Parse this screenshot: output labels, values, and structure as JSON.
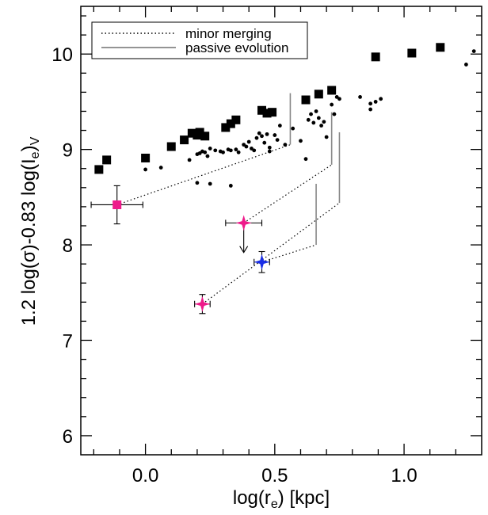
{
  "chart_data": {
    "type": "scatter",
    "xlabel": "log(r_e) [kpc]",
    "ylabel": "1.2 log(σ)-0.83 log(I_e)_V",
    "xlim": [
      -0.25,
      1.3
    ],
    "ylim": [
      5.8,
      10.5
    ],
    "x_ticks": [
      "0.0",
      "0.5",
      "1.0"
    ],
    "x_tick_values": [
      0.0,
      0.5,
      1.0
    ],
    "y_ticks": [
      "6",
      "7",
      "8",
      "9",
      "10"
    ],
    "y_tick_values": [
      6,
      7,
      8,
      9,
      10
    ],
    "legend": {
      "placement": "top-left",
      "items": [
        {
          "label": "minor merging",
          "style": "dotted"
        },
        {
          "label": "passive evolution",
          "style": "solid"
        }
      ]
    },
    "series": [
      {
        "marker": "square",
        "color": "#000000",
        "points": [
          [
            -0.18,
            8.79
          ],
          [
            -0.15,
            8.89
          ],
          [
            0.0,
            8.91
          ],
          [
            0.1,
            9.03
          ],
          [
            0.15,
            9.1
          ],
          [
            0.18,
            9.17
          ],
          [
            0.2,
            9.15
          ],
          [
            0.21,
            9.18
          ],
          [
            0.23,
            9.14
          ],
          [
            0.31,
            9.23
          ],
          [
            0.33,
            9.27
          ],
          [
            0.35,
            9.31
          ],
          [
            0.45,
            9.41
          ],
          [
            0.47,
            9.38
          ],
          [
            0.49,
            9.39
          ],
          [
            0.62,
            9.52
          ],
          [
            0.67,
            9.58
          ],
          [
            0.72,
            9.62
          ],
          [
            0.89,
            9.97
          ],
          [
            1.03,
            10.01
          ],
          [
            1.14,
            10.07
          ]
        ]
      },
      {
        "marker": "dot",
        "color": "#000000",
        "points": [
          [
            0.0,
            8.79
          ],
          [
            0.06,
            8.81
          ],
          [
            0.17,
            8.89
          ],
          [
            0.2,
            8.95
          ],
          [
            0.21,
            8.96
          ],
          [
            0.22,
            8.98
          ],
          [
            0.23,
            8.97
          ],
          [
            0.24,
            8.93
          ],
          [
            0.25,
            9.01
          ],
          [
            0.27,
            8.99
          ],
          [
            0.29,
            8.98
          ],
          [
            0.3,
            8.97
          ],
          [
            0.32,
            9.0
          ],
          [
            0.33,
            8.99
          ],
          [
            0.35,
            9.0
          ],
          [
            0.36,
            8.97
          ],
          [
            0.38,
            9.05
          ],
          [
            0.39,
            9.03
          ],
          [
            0.4,
            9.08
          ],
          [
            0.41,
            9.01
          ],
          [
            0.42,
            8.99
          ],
          [
            0.43,
            9.12
          ],
          [
            0.44,
            9.17
          ],
          [
            0.45,
            9.14
          ],
          [
            0.46,
            9.07
          ],
          [
            0.47,
            9.16
          ],
          [
            0.48,
            9.02
          ],
          [
            0.5,
            9.15
          ],
          [
            0.51,
            9.1
          ],
          [
            0.52,
            9.25
          ],
          [
            0.54,
            9.05
          ],
          [
            0.57,
            9.22
          ],
          [
            0.6,
            9.09
          ],
          [
            0.63,
            9.31
          ],
          [
            0.64,
            9.37
          ],
          [
            0.65,
            9.28
          ],
          [
            0.66,
            9.4
          ],
          [
            0.67,
            9.33
          ],
          [
            0.68,
            9.25
          ],
          [
            0.69,
            9.29
          ],
          [
            0.7,
            9.13
          ],
          [
            0.72,
            9.47
          ],
          [
            0.73,
            9.37
          ],
          [
            0.74,
            9.55
          ],
          [
            0.75,
            9.53
          ],
          [
            0.2,
            8.65
          ],
          [
            0.25,
            8.64
          ],
          [
            0.33,
            8.62
          ],
          [
            0.48,
            8.98
          ],
          [
            0.62,
            8.9
          ],
          [
            0.83,
            9.55
          ],
          [
            0.87,
            9.42
          ],
          [
            0.87,
            9.48
          ],
          [
            0.89,
            9.5
          ],
          [
            0.91,
            9.53
          ],
          [
            1.24,
            9.89
          ],
          [
            1.27,
            10.03
          ]
        ]
      },
      {
        "marker": "square",
        "color": "#ee1a8a",
        "points": [
          [
            -0.11,
            8.42
          ]
        ]
      },
      {
        "marker": "star",
        "color": "#ee1a8a",
        "points": [
          [
            0.38,
            8.23
          ],
          [
            0.22,
            7.38
          ]
        ]
      },
      {
        "marker": "star",
        "color": "#1a2ee6",
        "points": [
          [
            0.45,
            7.82
          ]
        ]
      }
    ],
    "error_bars": [
      {
        "x": -0.11,
        "y": 8.42,
        "x_err": 0.1,
        "y_err": 0.2
      },
      {
        "x": 0.38,
        "y": 8.23,
        "x_err": 0.07,
        "y_err": 0.0,
        "upper_limit_arrow_to": 7.92
      },
      {
        "x": 0.45,
        "y": 7.82,
        "x_err": 0.03,
        "y_err": 0.11
      },
      {
        "x": 0.22,
        "y": 7.38,
        "x_err": 0.03,
        "y_err": 0.1
      }
    ],
    "minor_merging_tracks": [
      [
        [
          -0.11,
          8.42
        ],
        [
          0.56,
          9.05
        ]
      ],
      [
        [
          0.38,
          8.23
        ],
        [
          0.72,
          8.84
        ]
      ],
      [
        [
          0.45,
          7.82
        ],
        [
          0.66,
          8.0
        ]
      ],
      [
        [
          0.22,
          7.38
        ],
        [
          0.75,
          8.44
        ]
      ]
    ],
    "passive_evolution_tracks": [
      [
        [
          0.56,
          9.05
        ],
        [
          0.56,
          9.59
        ]
      ],
      [
        [
          0.72,
          8.84
        ],
        [
          0.72,
          9.39
        ]
      ],
      [
        [
          0.66,
          8.0
        ],
        [
          0.66,
          8.64
        ]
      ],
      [
        [
          0.75,
          8.44
        ],
        [
          0.75,
          9.18
        ]
      ]
    ]
  }
}
